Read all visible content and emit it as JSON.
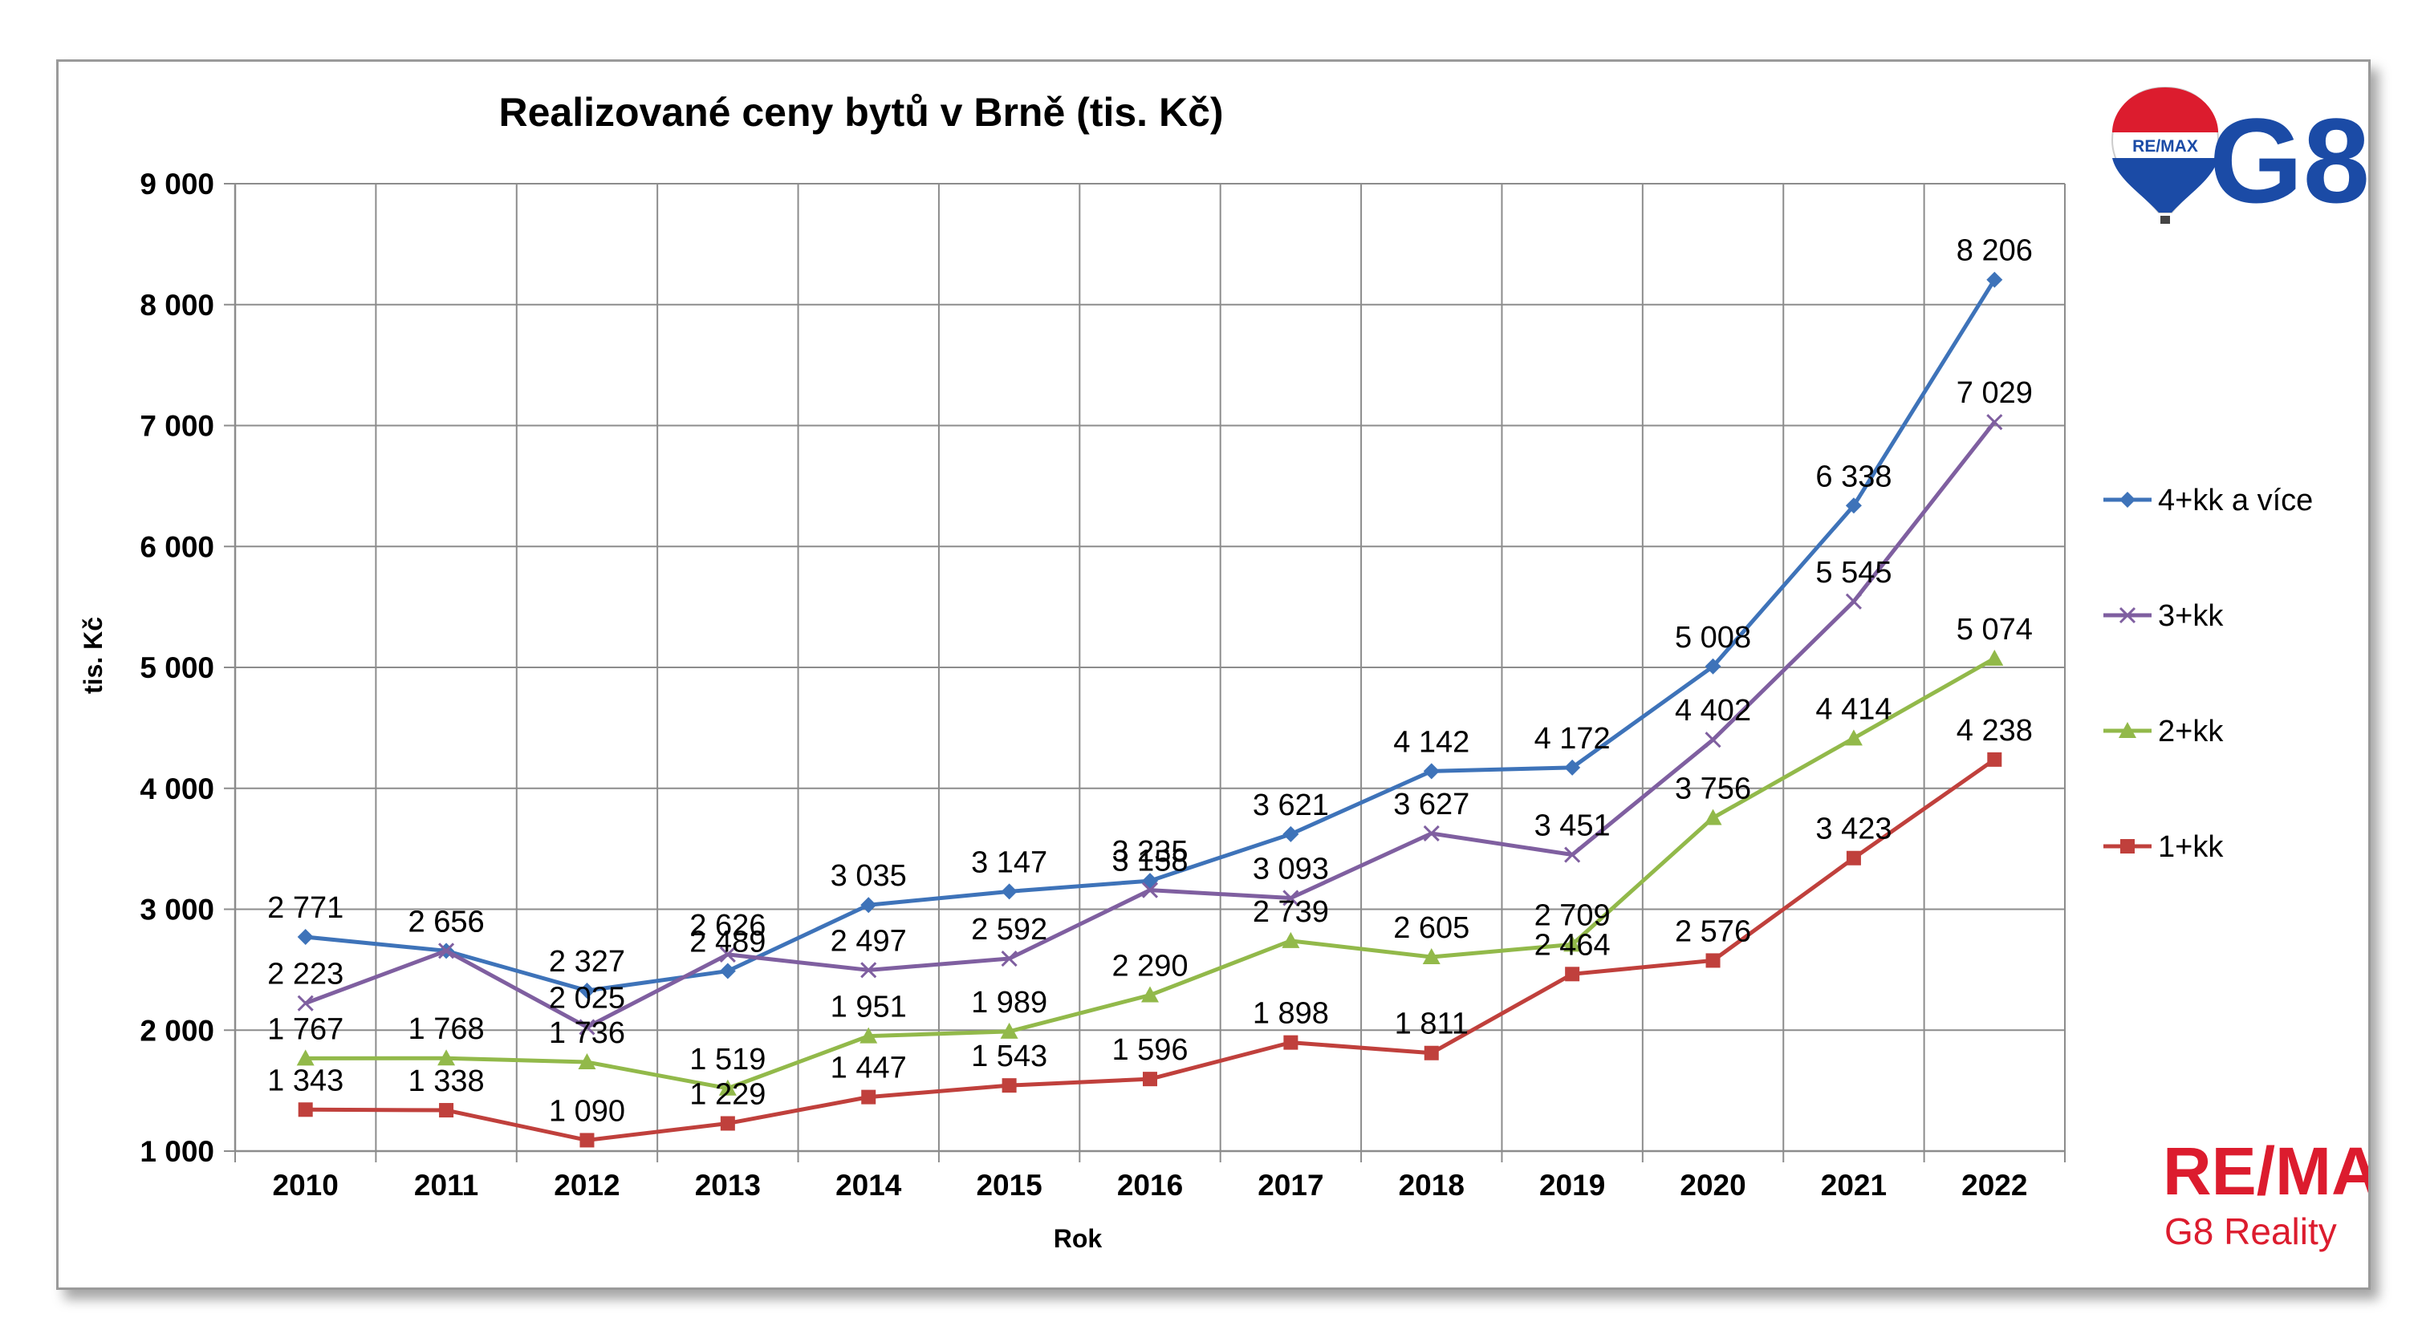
{
  "chart_data": {
    "type": "line",
    "title": "Realizované ceny bytů v Brně (tis. Kč)",
    "xlabel": "Rok",
    "ylabel": "tis. Kč",
    "ylim": [
      1000,
      9000
    ],
    "y_ticks": [
      "1 000",
      "2 000",
      "3 000",
      "4 000",
      "5 000",
      "6 000",
      "7 000",
      "8 000",
      "9 000"
    ],
    "x": [
      "2010",
      "2011",
      "2012",
      "2013",
      "2014",
      "2015",
      "2016",
      "2017",
      "2018",
      "2019",
      "2020",
      "2021",
      "2022"
    ],
    "grid": true,
    "legend_position": "right",
    "series": [
      {
        "name": "4+kk a více",
        "color": "#3e73b9",
        "marker": "diamond",
        "values": [
          2771,
          2656,
          2327,
          2489,
          3035,
          3147,
          3235,
          3621,
          4142,
          4172,
          5008,
          6338,
          8206
        ],
        "labels": [
          "2 771",
          "2 656",
          "2 327",
          "2 489",
          "3 035",
          "3 147",
          "3 235",
          "3 621",
          "4 142",
          "4 172",
          "5 008",
          "6 338",
          "8 206"
        ]
      },
      {
        "name": "3+kk",
        "color": "#7f5fa0",
        "marker": "x",
        "values": [
          2223,
          2656,
          2025,
          2626,
          2497,
          2592,
          3158,
          3093,
          3627,
          3451,
          4402,
          5545,
          7029
        ],
        "labels": [
          "2 223",
          "2 656",
          "2 025",
          "2 626",
          "2 497",
          "2 592",
          "3 158",
          "3 093",
          "3 627",
          "3 451",
          "4 402",
          "5 545",
          "7 029"
        ]
      },
      {
        "name": "2+kk",
        "color": "#92b94a",
        "marker": "triangle",
        "values": [
          1767,
          1768,
          1736,
          1519,
          1951,
          1989,
          2290,
          2739,
          2605,
          2709,
          3756,
          4414,
          5074
        ],
        "labels": [
          "1 767",
          "1 768",
          "1 736",
          "1 519",
          "1 951",
          "1 989",
          "2 290",
          "2 739",
          "2 605",
          "2 709",
          "3 756",
          "4 414",
          "5 074"
        ]
      },
      {
        "name": "1+kk",
        "color": "#c0403c",
        "marker": "square",
        "values": [
          1343,
          1338,
          1090,
          1229,
          1447,
          1543,
          1596,
          1898,
          1811,
          2464,
          2576,
          3423,
          4238
        ],
        "labels": [
          "1 343",
          "1 338",
          "1 090",
          "1 229",
          "1 447",
          "1 543",
          "1 596",
          "1 898",
          "1 811",
          "2 464",
          "2 576",
          "3 423",
          "4 238"
        ]
      }
    ]
  },
  "branding": {
    "top_logo_text": "G8",
    "balloon_text": "RE/MAX",
    "bottom_logo_text": "RE/MAX",
    "bottom_logo_subtext": "G8 Reality",
    "brand_red": "#dc1c2e",
    "brand_blue": "#1b4ba6"
  }
}
